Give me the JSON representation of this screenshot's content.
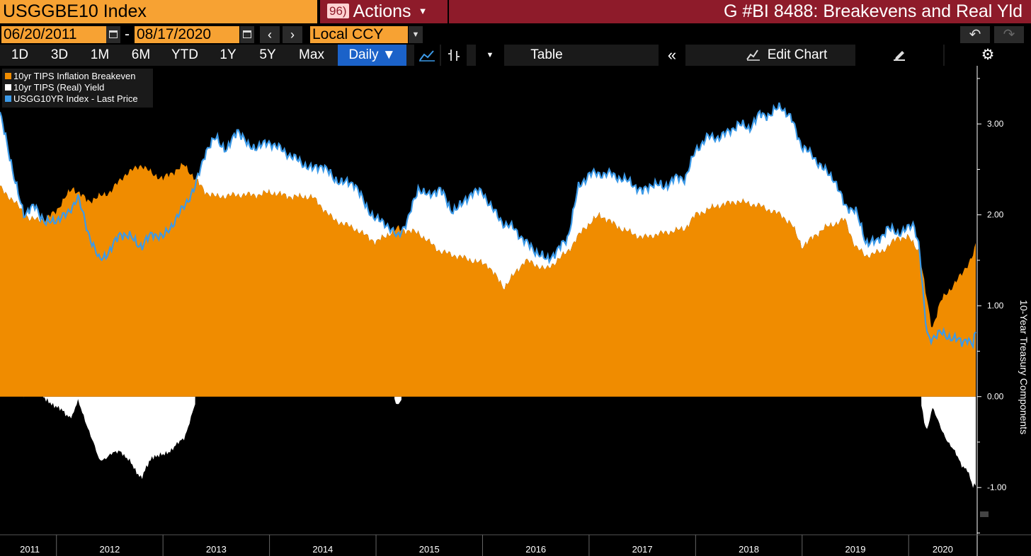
{
  "header": {
    "ticker": "USGGBE10 Index",
    "actions_num": "96)",
    "actions_label": "Actions",
    "title": "G #BI 8488: Breakevens and Real Yld"
  },
  "controls": {
    "start_date": "06/20/2011",
    "end_date": "08/17/2020",
    "currency": "Local CCY"
  },
  "toolbar": {
    "ranges": [
      "1D",
      "3D",
      "1M",
      "6M",
      "YTD",
      "1Y",
      "5Y",
      "Max"
    ],
    "frequency": "Daily ▼",
    "table_label": "Table",
    "edit_chart_label": "Edit Chart"
  },
  "colors": {
    "breakeven": "#f08c00",
    "real_yield": "#ffffff",
    "nominal": "#3c9ae8",
    "header_red": "#8e1b2a",
    "orange": "#f7a233"
  },
  "chart_data": {
    "type": "area",
    "ylabel": "10-Year Treasury Components",
    "ylim": [
      -1.5,
      3.5
    ],
    "yticks": [
      3.0,
      2.0,
      1.0,
      0.0,
      -1.0
    ],
    "ytick_labels": [
      "3.00",
      "2.00",
      "1.00",
      "0.00",
      "-1.00"
    ],
    "x_labels": [
      "2011",
      "2012",
      "2013",
      "2014",
      "2015",
      "2016",
      "2017",
      "2018",
      "2019",
      "2020"
    ],
    "legend": [
      "10yr TIPS Inflation Breakeven",
      "10yr TIPS (Real) Yield",
      "USGG10YR Index - Last Price"
    ],
    "series": [
      {
        "name": "10yr TIPS Inflation Breakeven",
        "x": [
          2011.47,
          2011.6,
          2011.75,
          2011.9,
          2012.0,
          2012.15,
          2012.3,
          2012.5,
          2012.65,
          2012.8,
          2012.9,
          2013.0,
          2013.2,
          2013.4,
          2013.5,
          2013.7,
          2013.9,
          2014.0,
          2014.2,
          2014.4,
          2014.6,
          2014.8,
          2015.0,
          2015.2,
          2015.4,
          2015.6,
          2015.75,
          2015.9,
          2016.05,
          2016.2,
          2016.4,
          2016.6,
          2016.8,
          2016.95,
          2017.1,
          2017.3,
          2017.5,
          2017.7,
          2017.9,
          2018.0,
          2018.2,
          2018.4,
          2018.6,
          2018.8,
          2018.9,
          2019.0,
          2019.2,
          2019.4,
          2019.5,
          2019.6,
          2019.75,
          2019.9,
          2020.0,
          2020.1,
          2020.18,
          2020.22,
          2020.3,
          2020.4,
          2020.5,
          2020.6,
          2020.63
        ],
        "values": [
          2.3,
          2.15,
          1.95,
          1.95,
          2.05,
          2.3,
          2.15,
          2.25,
          2.45,
          2.55,
          2.45,
          2.4,
          2.55,
          2.25,
          2.2,
          2.22,
          2.22,
          2.25,
          2.2,
          2.2,
          1.95,
          1.85,
          1.7,
          1.85,
          1.8,
          1.6,
          1.55,
          1.5,
          1.45,
          1.2,
          1.5,
          1.4,
          1.6,
          1.85,
          2.0,
          1.85,
          1.75,
          1.8,
          1.85,
          2.0,
          2.1,
          2.15,
          2.1,
          2.0,
          1.9,
          1.65,
          1.85,
          1.95,
          1.65,
          1.55,
          1.6,
          1.75,
          1.75,
          1.6,
          1.0,
          0.75,
          1.05,
          1.2,
          1.35,
          1.55,
          1.66
        ]
      },
      {
        "name": "USGG10YR Index - Last Price",
        "x": [
          2011.47,
          2011.52,
          2011.6,
          2011.7,
          2011.8,
          2011.9,
          2012.0,
          2012.1,
          2012.2,
          2012.3,
          2012.4,
          2012.5,
          2012.6,
          2012.7,
          2012.8,
          2012.9,
          2013.0,
          2013.15,
          2013.3,
          2013.4,
          2013.5,
          2013.6,
          2013.7,
          2013.8,
          2013.9,
          2014.0,
          2014.2,
          2014.4,
          2014.5,
          2014.6,
          2014.7,
          2014.8,
          2014.9,
          2015.0,
          2015.1,
          2015.2,
          2015.3,
          2015.4,
          2015.5,
          2015.6,
          2015.7,
          2015.8,
          2015.9,
          2016.0,
          2016.1,
          2016.2,
          2016.3,
          2016.4,
          2016.5,
          2016.6,
          2016.7,
          2016.8,
          2016.9,
          2017.0,
          2017.2,
          2017.4,
          2017.5,
          2017.6,
          2017.7,
          2017.8,
          2017.9,
          2018.0,
          2018.1,
          2018.2,
          2018.3,
          2018.4,
          2018.5,
          2018.6,
          2018.7,
          2018.8,
          2018.9,
          2019.0,
          2019.1,
          2019.2,
          2019.3,
          2019.4,
          2019.5,
          2019.6,
          2019.7,
          2019.8,
          2019.9,
          2020.0,
          2020.05,
          2020.1,
          2020.15,
          2020.18,
          2020.22,
          2020.3,
          2020.4,
          2020.5,
          2020.55,
          2020.6,
          2020.63
        ],
        "values": [
          3.1,
          2.9,
          2.4,
          2.0,
          2.1,
          1.9,
          1.95,
          2.0,
          2.2,
          1.8,
          1.5,
          1.6,
          1.8,
          1.75,
          1.65,
          1.8,
          1.75,
          2.0,
          2.3,
          2.7,
          2.85,
          2.7,
          2.95,
          2.75,
          2.75,
          2.8,
          2.65,
          2.5,
          2.55,
          2.4,
          2.35,
          2.35,
          2.1,
          1.95,
          1.9,
          1.75,
          1.95,
          2.3,
          2.2,
          2.3,
          2.05,
          2.1,
          2.25,
          2.25,
          2.05,
          1.9,
          1.85,
          1.7,
          1.6,
          1.5,
          1.6,
          1.75,
          2.3,
          2.45,
          2.45,
          2.35,
          2.25,
          2.35,
          2.3,
          2.4,
          2.4,
          2.7,
          2.85,
          2.85,
          2.9,
          3.0,
          2.95,
          3.1,
          3.1,
          3.2,
          3.05,
          2.75,
          2.65,
          2.5,
          2.4,
          2.1,
          2.05,
          1.7,
          1.7,
          1.85,
          1.8,
          1.85,
          1.9,
          1.65,
          0.9,
          0.65,
          0.65,
          0.7,
          0.65,
          0.6,
          0.65,
          0.55,
          0.69
        ]
      }
    ]
  }
}
